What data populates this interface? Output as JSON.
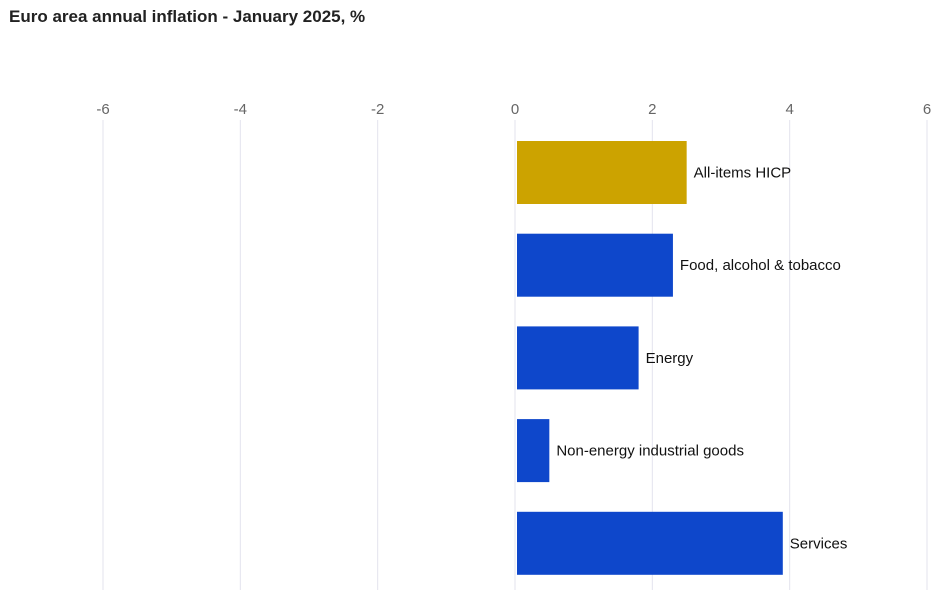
{
  "chart_data": {
    "type": "bar",
    "orientation": "horizontal",
    "title": "Euro area annual inflation - January 2025, %",
    "xlabel": "",
    "ylabel": "",
    "xlim": [
      -6,
      6
    ],
    "xticks": [
      -6,
      -4,
      -2,
      0,
      2,
      4,
      6
    ],
    "xtick_labels": [
      "-6",
      "-4",
      "-2",
      "0",
      "2",
      "4",
      "6"
    ],
    "grid": "vertical",
    "categories": [
      "All-items HICP",
      "Food, alcohol & tobacco",
      "Energy",
      "Non-energy industrial goods",
      "Services"
    ],
    "values": [
      2.5,
      2.3,
      1.8,
      0.5,
      3.9
    ],
    "colors": [
      "#cca300",
      "#0e47cb",
      "#0e47cb",
      "#0e47cb",
      "#0e47cb"
    ]
  }
}
